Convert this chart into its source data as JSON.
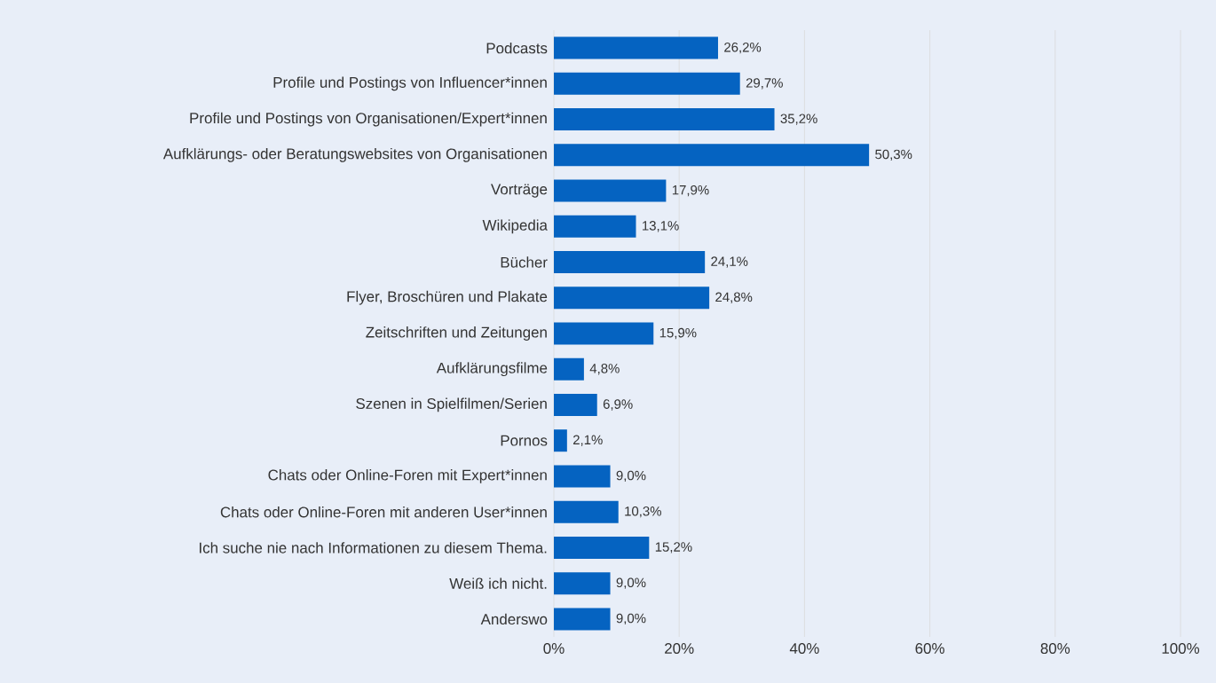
{
  "chart_data": {
    "type": "bar",
    "orientation": "horizontal",
    "color": "#0563c1",
    "categories": [
      "Podcasts",
      "Profile und Postings von Influencer*innen",
      "Profile und Postings von Organisationen/Expert*innen",
      "Aufklärungs- oder Beratungswebsites von Organisationen",
      "Vorträge",
      "Wikipedia",
      "Bücher",
      "Flyer, Broschüren und Plakate",
      "Zeitschriften und Zeitungen",
      "Aufklärungsfilme",
      "Szenen in Spielfilmen/Serien",
      "Pornos",
      "Chats oder Online-Foren mit Expert*innen",
      "Chats oder Online-Foren mit anderen User*innen",
      "Ich suche nie nach Informationen zu diesem Thema.",
      "Weiß ich nicht.",
      "Anderswo"
    ],
    "values": [
      26.2,
      29.7,
      35.2,
      50.3,
      17.9,
      13.1,
      24.1,
      24.8,
      15.9,
      4.8,
      6.9,
      2.1,
      9.0,
      10.3,
      15.2,
      9.0,
      9.0
    ],
    "value_labels": [
      "26,2%",
      "29,7%",
      "35,2%",
      "50,3%",
      "17,9%",
      "13,1%",
      "24,1%",
      "24,8%",
      "15,9%",
      "4,8%",
      "6,9%",
      "2,1%",
      "9,0%",
      "10,3%",
      "15,2%",
      "9,0%",
      "9,0%"
    ],
    "xlim": [
      0,
      100
    ],
    "xticks": [
      {
        "value": 0,
        "label": "0%"
      },
      {
        "value": 20,
        "label": "20%"
      },
      {
        "value": 40,
        "label": "40%"
      },
      {
        "value": 60,
        "label": "60%"
      },
      {
        "value": 80,
        "label": "80%"
      },
      {
        "value": 100,
        "label": "100%"
      }
    ],
    "grid": "x"
  }
}
